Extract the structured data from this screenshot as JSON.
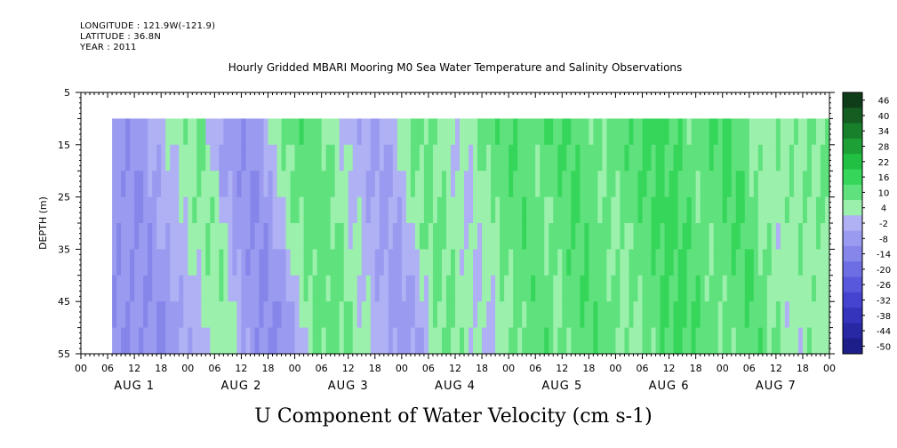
{
  "header": {
    "longitude": "LONGITUDE : 121.9W(-121.9)",
    "latitude": "LATITUDE : 36.8N",
    "year": "YEAR : 2011"
  },
  "chart_data": {
    "type": "heatmap",
    "title": "Hourly Gridded MBARI Mooring M0 Sea Water Temperature and Salinity Observations",
    "variable_title": "U Component of Water Velocity (cm s-1)",
    "ylabel": "DEPTH (m)",
    "y_ticks": [
      5,
      15,
      25,
      35,
      45,
      55
    ],
    "y_range": [
      5,
      55
    ],
    "y_inverted": true,
    "data_depth_range": [
      10,
      55
    ],
    "x_hour_ticks": [
      "00",
      "06",
      "12",
      "18",
      "00",
      "06",
      "12",
      "18",
      "00",
      "06",
      "12",
      "18",
      "00",
      "06",
      "12",
      "18",
      "00",
      "06",
      "12",
      "18",
      "00",
      "06",
      "12",
      "18",
      "00",
      "06",
      "12",
      "18",
      "00"
    ],
    "x_date_labels": [
      "AUG  1",
      "AUG  2",
      "AUG  3",
      "AUG  4",
      "AUG  5",
      "AUG  6",
      "AUG  7"
    ],
    "x_range_hours": [
      0,
      168
    ],
    "data_start_hour": 7,
    "colorbar": {
      "labels": [
        "46",
        "40",
        "34",
        "28",
        "22",
        "16",
        "10",
        "4",
        "-2",
        "-8",
        "-14",
        "-20",
        "-26",
        "-32",
        "-38",
        "-44",
        "-50"
      ],
      "min": -50,
      "max": 52,
      "colors_positive": [
        "#0f3d1a",
        "#145e22",
        "#18802b",
        "#1da036",
        "#22c042",
        "#35d65a",
        "#5fe27d",
        "#9bf0ac"
      ],
      "colors_negative": [
        "#b0b0f4",
        "#9a9af0",
        "#8585ea",
        "#6e6ee4",
        "#5858dc",
        "#4444d0",
        "#3434bd",
        "#2828a5",
        "#1e1e8a",
        "#151570",
        "#0d0d55"
      ]
    },
    "time_profile": [
      {
        "hour": 7,
        "value": -10
      },
      {
        "hour": 10,
        "value": -12
      },
      {
        "hour": 14,
        "value": -6
      },
      {
        "hour": 18,
        "value": -2
      },
      {
        "hour": 22,
        "value": 4
      },
      {
        "hour": 26,
        "value": 5
      },
      {
        "hour": 29,
        "value": -6
      },
      {
        "hour": 32,
        "value": -10
      },
      {
        "hour": 36,
        "value": -12
      },
      {
        "hour": 40,
        "value": -6
      },
      {
        "hour": 44,
        "value": 6
      },
      {
        "hour": 48,
        "value": 9
      },
      {
        "hour": 52,
        "value": 8
      },
      {
        "hour": 56,
        "value": 2
      },
      {
        "hour": 60,
        "value": -4
      },
      {
        "hour": 64,
        "value": -8
      },
      {
        "hour": 68,
        "value": -6
      },
      {
        "hour": 72,
        "value": 5
      },
      {
        "hour": 76,
        "value": 8
      },
      {
        "hour": 80,
        "value": 2
      },
      {
        "hour": 84,
        "value": -1
      },
      {
        "hour": 88,
        "value": 5
      },
      {
        "hour": 92,
        "value": 9
      },
      {
        "hour": 96,
        "value": 11
      },
      {
        "hour": 100,
        "value": 6
      },
      {
        "hour": 104,
        "value": 10
      },
      {
        "hour": 108,
        "value": 12
      },
      {
        "hour": 112,
        "value": 8
      },
      {
        "hour": 116,
        "value": 5
      },
      {
        "hour": 120,
        "value": 9
      },
      {
        "hour": 124,
        "value": 12
      },
      {
        "hour": 128,
        "value": 14
      },
      {
        "hour": 132,
        "value": 11
      },
      {
        "hour": 136,
        "value": 7
      },
      {
        "hour": 140,
        "value": 10
      },
      {
        "hour": 144,
        "value": 13
      },
      {
        "hour": 148,
        "value": 6
      },
      {
        "hour": 152,
        "value": 2
      },
      {
        "hour": 156,
        "value": 5
      },
      {
        "hour": 160,
        "value": 4
      },
      {
        "hour": 164,
        "value": 6
      },
      {
        "hour": 168,
        "value": 7
      }
    ]
  }
}
